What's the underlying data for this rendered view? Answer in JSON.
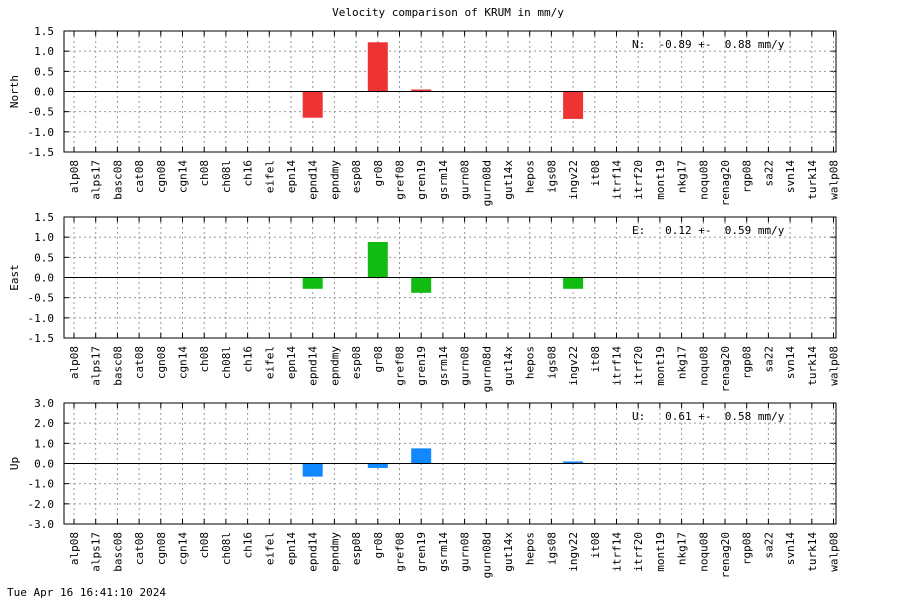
{
  "title": "Velocity comparison of KRUM in mm/y",
  "footer": "Tue Apr 16 16:41:10 2024",
  "chart_data": [
    {
      "type": "bar",
      "ylabel": "North",
      "ylim": [
        -1.5,
        1.5
      ],
      "yticks": [
        "1.5",
        "1.0",
        "0.5",
        "0.0",
        "-0.5",
        "-1.0",
        "-1.5"
      ],
      "ytick_values": [
        1.5,
        1.0,
        0.5,
        0.0,
        -0.5,
        -1.0,
        -1.5
      ],
      "grid": true,
      "color": "#ee3333",
      "annotation": "N:  -0.89 +-  0.88 mm/y",
      "categories": [
        "alp08",
        "alps17",
        "basc08",
        "cat08",
        "cgn08",
        "cgn14",
        "ch08",
        "ch08l",
        "ch16",
        "eifel",
        "epn14",
        "epnd14",
        "epndmy",
        "esp08",
        "gr08",
        "gref08",
        "gren19",
        "gsrm14",
        "gurn08",
        "gurn08d",
        "gut14x",
        "hepos",
        "igs08",
        "ingv22",
        "it08",
        "itrf14",
        "itrf20",
        "mont19",
        "nkg17",
        "noqu08",
        "renag20",
        "rgp08",
        "sa22",
        "svn14",
        "turk14",
        "walp08"
      ],
      "values": [
        null,
        null,
        null,
        null,
        null,
        null,
        null,
        null,
        null,
        null,
        null,
        -0.65,
        null,
        null,
        1.22,
        null,
        0.05,
        null,
        null,
        null,
        null,
        null,
        null,
        -0.68,
        null,
        null,
        null,
        null,
        null,
        null,
        null,
        null,
        null,
        null,
        null,
        null
      ]
    },
    {
      "type": "bar",
      "ylabel": "East",
      "ylim": [
        -1.5,
        1.5
      ],
      "yticks": [
        "1.5",
        "1.0",
        "0.5",
        "0.0",
        "-0.5",
        "-1.0",
        "-1.5"
      ],
      "ytick_values": [
        1.5,
        1.0,
        0.5,
        0.0,
        -0.5,
        -1.0,
        -1.5
      ],
      "grid": true,
      "color": "#11bb11",
      "annotation": "E:   0.12 +-  0.59 mm/y",
      "categories": [
        "alp08",
        "alps17",
        "basc08",
        "cat08",
        "cgn08",
        "cgn14",
        "ch08",
        "ch08l",
        "ch16",
        "eifel",
        "epn14",
        "epnd14",
        "epndmy",
        "esp08",
        "gr08",
        "gref08",
        "gren19",
        "gsrm14",
        "gurn08",
        "gurn08d",
        "gut14x",
        "hepos",
        "igs08",
        "ingv22",
        "it08",
        "itrf14",
        "itrf20",
        "mont19",
        "nkg17",
        "noqu08",
        "renag20",
        "rgp08",
        "sa22",
        "svn14",
        "turk14",
        "walp08"
      ],
      "values": [
        null,
        null,
        null,
        null,
        null,
        null,
        null,
        null,
        null,
        null,
        null,
        -0.28,
        null,
        null,
        0.88,
        null,
        -0.38,
        null,
        null,
        null,
        null,
        null,
        null,
        -0.28,
        null,
        null,
        null,
        null,
        null,
        null,
        null,
        null,
        null,
        null,
        null,
        null
      ]
    },
    {
      "type": "bar",
      "ylabel": "Up",
      "ylim": [
        -3.0,
        3.0
      ],
      "yticks": [
        "3.0",
        "2.0",
        "1.0",
        "0.0",
        "-1.0",
        "-2.0",
        "-3.0"
      ],
      "ytick_values": [
        3.0,
        2.0,
        1.0,
        0.0,
        -1.0,
        -2.0,
        -3.0
      ],
      "grid": true,
      "color": "#1188ff",
      "annotation": "U:   0.61 +-  0.58 mm/y",
      "categories": [
        "alp08",
        "alps17",
        "basc08",
        "cat08",
        "cgn08",
        "cgn14",
        "ch08",
        "ch08l",
        "ch16",
        "eifel",
        "epn14",
        "epnd14",
        "epndmy",
        "esp08",
        "gr08",
        "gref08",
        "gren19",
        "gsrm14",
        "gurn08",
        "gurn08d",
        "gut14x",
        "hepos",
        "igs08",
        "ingv22",
        "it08",
        "itrf14",
        "itrf20",
        "mont19",
        "nkg17",
        "noqu08",
        "renag20",
        "rgp08",
        "sa22",
        "svn14",
        "turk14",
        "walp08"
      ],
      "values": [
        null,
        null,
        null,
        null,
        null,
        null,
        null,
        null,
        null,
        null,
        null,
        -0.65,
        null,
        null,
        -0.22,
        null,
        0.75,
        null,
        null,
        null,
        null,
        null,
        null,
        0.1,
        null,
        null,
        null,
        null,
        null,
        null,
        null,
        null,
        null,
        null,
        null,
        null
      ]
    }
  ]
}
